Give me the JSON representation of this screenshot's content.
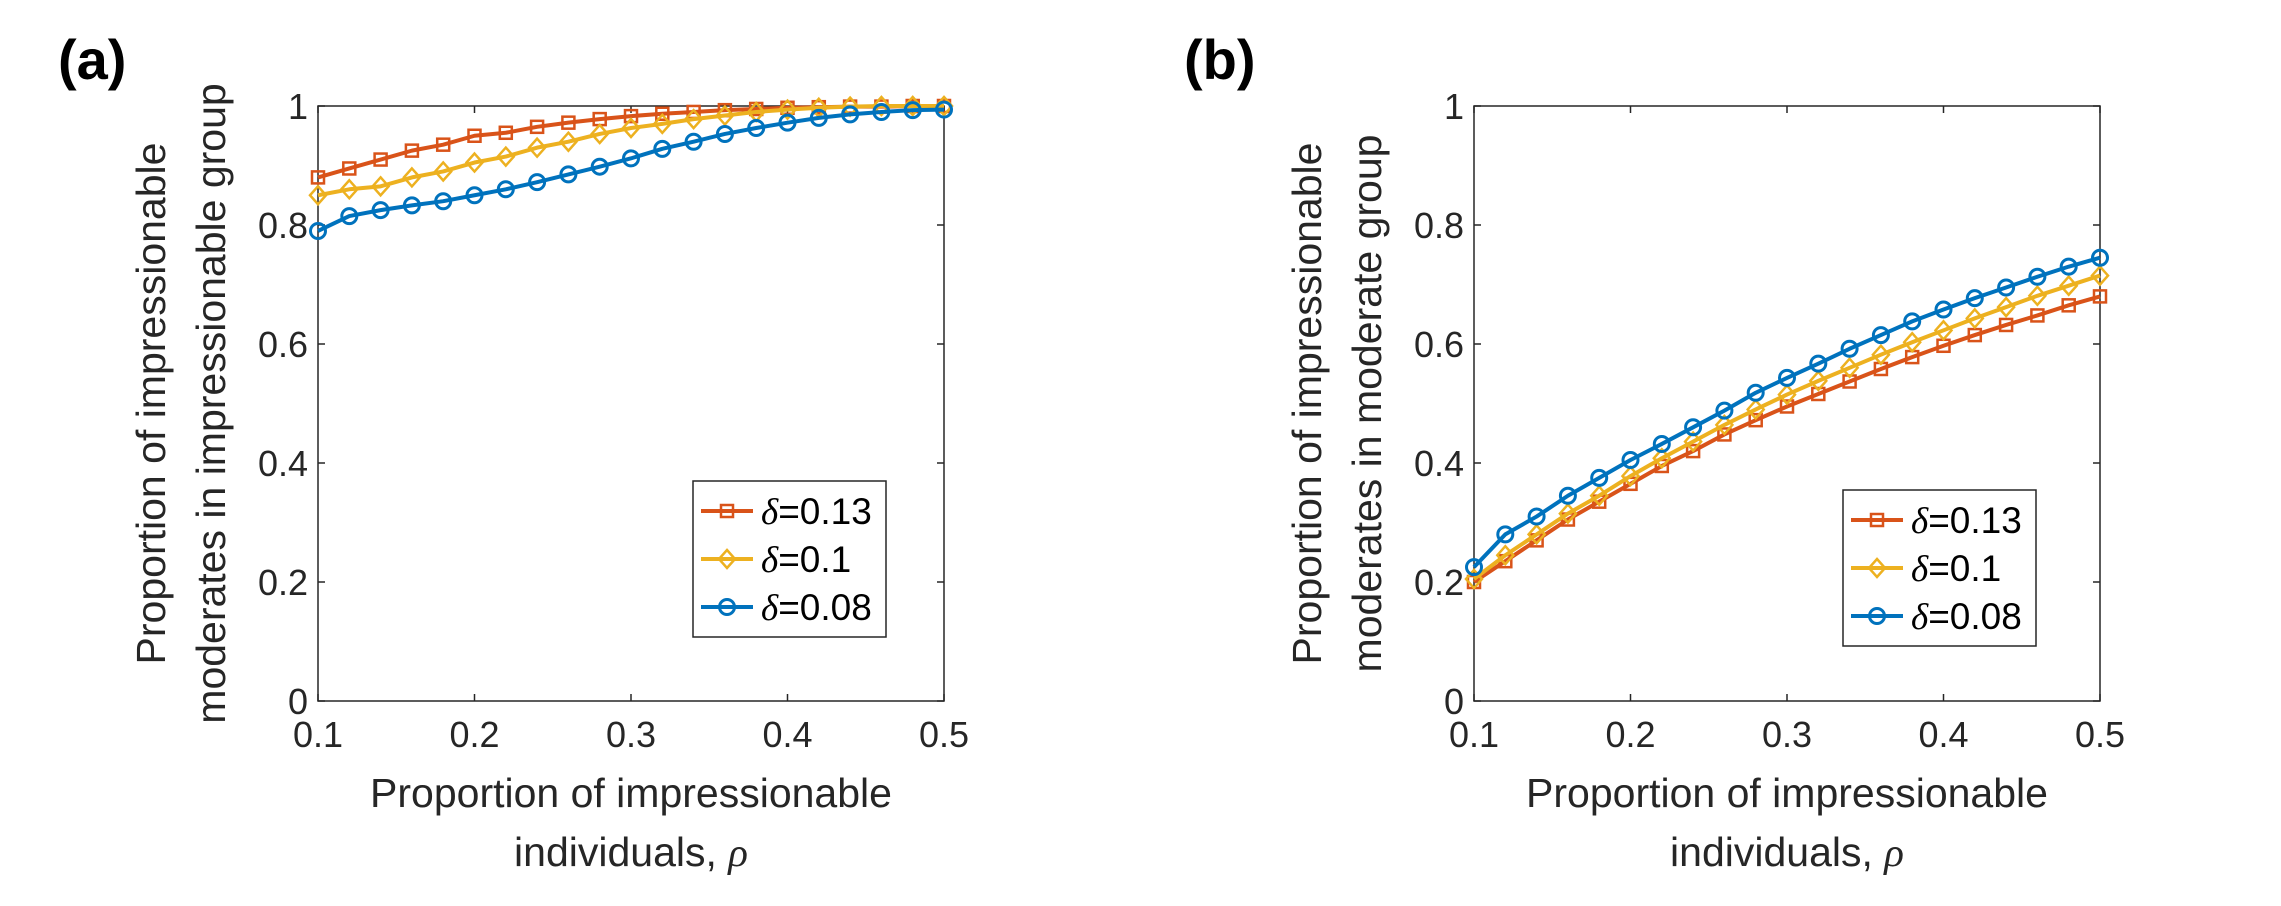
{
  "chart_data": [
    {
      "type": "line",
      "panel_label": "(a)",
      "title": "",
      "xlabel_line1": "Proportion of impressionable",
      "xlabel_line2": "individuals, ",
      "xlabel_symbol": "ρ",
      "ylabel_line1": "Proportion of impressionable",
      "ylabel_line2": "moderates in impressionable group",
      "xlim": [
        0.1,
        0.5
      ],
      "ylim": [
        0,
        1
      ],
      "xticks": [
        0.1,
        0.2,
        0.3,
        0.4,
        0.5
      ],
      "xtick_labels": [
        "0.1",
        "0.2",
        "0.3",
        "0.4",
        "0.5"
      ],
      "yticks": [
        0,
        0.2,
        0.4,
        0.6,
        0.8,
        1
      ],
      "ytick_labels": [
        "0",
        "0.2",
        "0.4",
        "0.6",
        "0.8",
        "1"
      ],
      "legend_position": "bottom-right",
      "x": [
        0.1,
        0.12,
        0.14,
        0.16,
        0.18,
        0.2,
        0.22,
        0.24,
        0.26,
        0.28,
        0.3,
        0.32,
        0.34,
        0.36,
        0.38,
        0.4,
        0.42,
        0.44,
        0.46,
        0.48,
        0.5
      ],
      "series": [
        {
          "name": "δ=0.13",
          "symbol": "δ",
          "label_value": "=0.13",
          "color": "#D95319",
          "marker": "square",
          "values": [
            0.88,
            0.895,
            0.91,
            0.925,
            0.935,
            0.95,
            0.955,
            0.965,
            0.972,
            0.978,
            0.983,
            0.987,
            0.99,
            0.993,
            0.995,
            0.997,
            0.998,
            0.999,
            0.999,
            1.0,
            1.0
          ]
        },
        {
          "name": "δ=0.1",
          "symbol": "δ",
          "label_value": "=0.1",
          "color": "#EDB120",
          "marker": "diamond",
          "values": [
            0.85,
            0.86,
            0.865,
            0.88,
            0.89,
            0.905,
            0.915,
            0.93,
            0.94,
            0.953,
            0.963,
            0.97,
            0.978,
            0.984,
            0.99,
            0.994,
            0.997,
            0.999,
            1.0,
            1.0,
            1.0
          ]
        },
        {
          "name": "δ=0.08",
          "symbol": "δ",
          "label_value": "=0.08",
          "color": "#0072BD",
          "marker": "circle",
          "values": [
            0.79,
            0.815,
            0.825,
            0.833,
            0.84,
            0.85,
            0.86,
            0.872,
            0.885,
            0.898,
            0.912,
            0.928,
            0.94,
            0.953,
            0.963,
            0.972,
            0.98,
            0.986,
            0.99,
            0.993,
            0.994
          ]
        }
      ]
    },
    {
      "type": "line",
      "panel_label": "(b)",
      "title": "",
      "xlabel_line1": "Proportion of impressionable",
      "xlabel_line2": "individuals, ",
      "xlabel_symbol": "ρ",
      "ylabel_line1": "Proportion of impressionable",
      "ylabel_line2": "moderates in moderate group",
      "xlim": [
        0.1,
        0.5
      ],
      "ylim": [
        0,
        1
      ],
      "xticks": [
        0.1,
        0.2,
        0.3,
        0.4,
        0.5
      ],
      "xtick_labels": [
        "0.1",
        "0.2",
        "0.3",
        "0.4",
        "0.5"
      ],
      "yticks": [
        0,
        0.2,
        0.4,
        0.6,
        0.8,
        1
      ],
      "ytick_labels": [
        "0",
        "0.2",
        "0.4",
        "0.6",
        "0.8",
        "1"
      ],
      "legend_position": "bottom-right",
      "x": [
        0.1,
        0.12,
        0.14,
        0.16,
        0.18,
        0.2,
        0.22,
        0.24,
        0.26,
        0.28,
        0.3,
        0.32,
        0.34,
        0.36,
        0.38,
        0.4,
        0.42,
        0.44,
        0.46,
        0.48,
        0.5
      ],
      "series": [
        {
          "name": "δ=0.13",
          "symbol": "δ",
          "label_value": "=0.13",
          "color": "#D95319",
          "marker": "square",
          "values": [
            0.2,
            0.235,
            0.27,
            0.305,
            0.335,
            0.365,
            0.395,
            0.42,
            0.448,
            0.472,
            0.495,
            0.516,
            0.537,
            0.558,
            0.578,
            0.597,
            0.615,
            0.632,
            0.648,
            0.665,
            0.68
          ]
        },
        {
          "name": "δ=0.1",
          "symbol": "δ",
          "label_value": "=0.1",
          "color": "#EDB120",
          "marker": "diamond",
          "values": [
            0.205,
            0.245,
            0.28,
            0.315,
            0.345,
            0.378,
            0.408,
            0.436,
            0.464,
            0.49,
            0.515,
            0.538,
            0.56,
            0.582,
            0.603,
            0.623,
            0.643,
            0.662,
            0.681,
            0.698,
            0.715
          ]
        },
        {
          "name": "δ=0.08",
          "symbol": "δ",
          "label_value": "=0.08",
          "color": "#0072BD",
          "marker": "circle",
          "values": [
            0.225,
            0.28,
            0.31,
            0.345,
            0.375,
            0.405,
            0.432,
            0.46,
            0.488,
            0.518,
            0.543,
            0.567,
            0.592,
            0.615,
            0.638,
            0.658,
            0.677,
            0.695,
            0.713,
            0.73,
            0.745
          ]
        }
      ]
    }
  ]
}
